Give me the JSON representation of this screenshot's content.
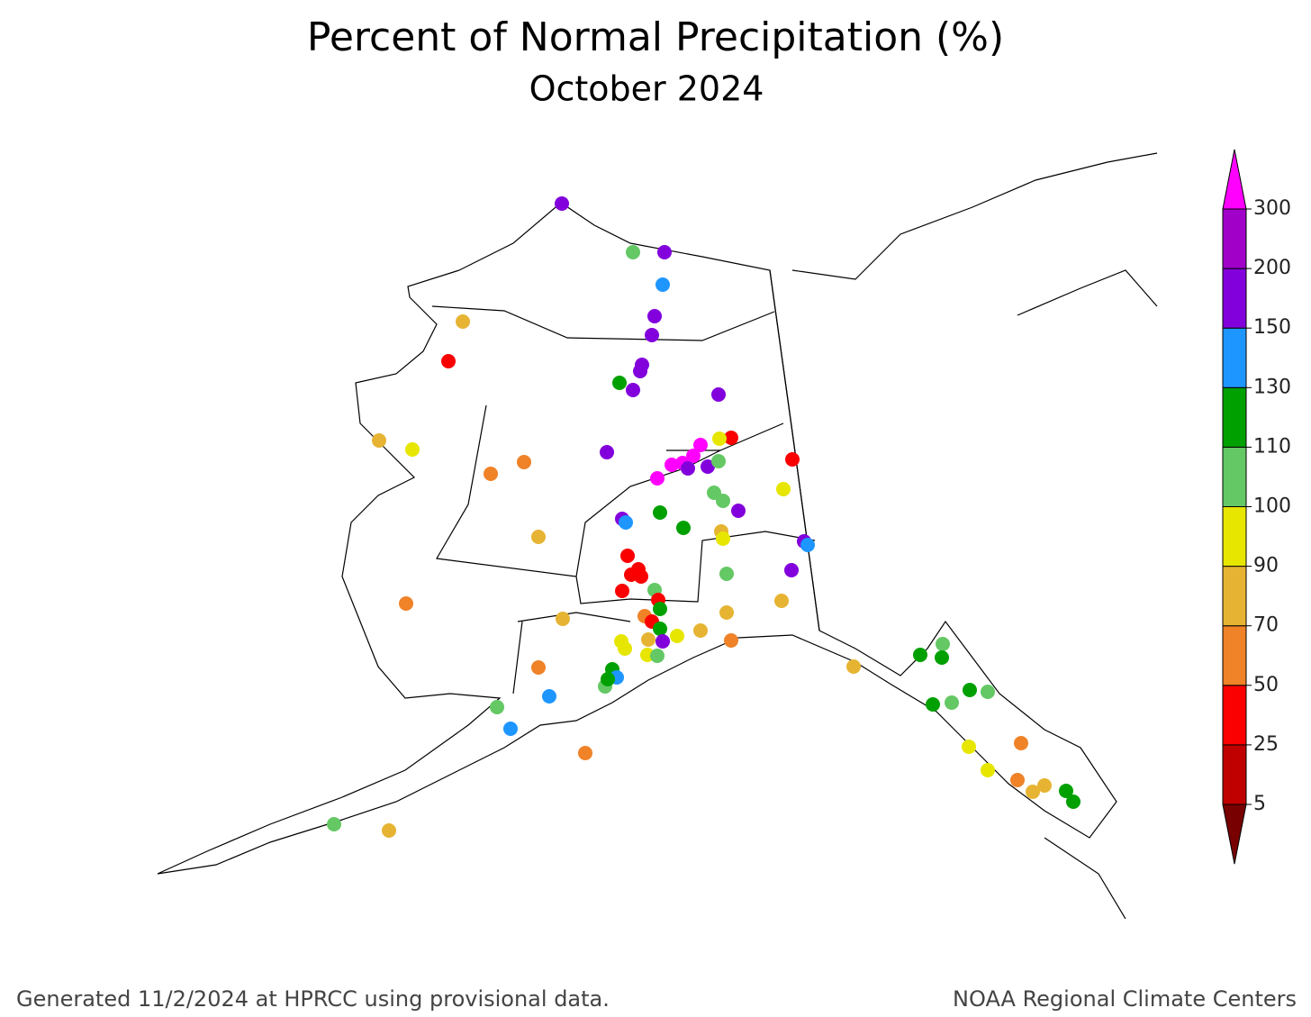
{
  "title": "Percent of Normal Precipitation (%)",
  "subtitle": "October 2024",
  "colorbar": {
    "levels": [
      5,
      25,
      50,
      70,
      90,
      100,
      110,
      130,
      150,
      200,
      300
    ],
    "colors": [
      "#780000",
      "#c00000",
      "#fa0000",
      "#f08228",
      "#e6b432",
      "#e6e600",
      "#64c864",
      "#00a000",
      "#1e96ff",
      "#8200dc",
      "#a000c8",
      "#ff00ff"
    ]
  },
  "footer_left": "Generated 11/2/2024 at HPRCC using provisional data.",
  "footer_right": "NOAA Regional Climate Centers"
}
